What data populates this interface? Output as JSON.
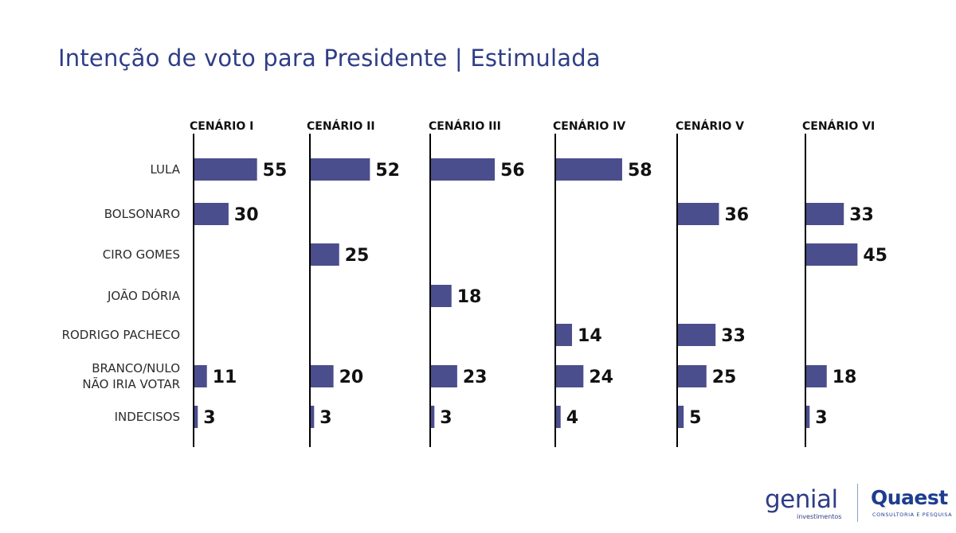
{
  "title": "Intenção de voto para Presidente | Estimulada",
  "colors": {
    "bar": "#4a4e8c",
    "title": "#2f3d87",
    "axis": "#000000"
  },
  "chart_data": {
    "type": "bar",
    "orientation": "horizontal",
    "categories": [
      "LULA",
      "BOLSONARO",
      "CIRO GOMES",
      "JOÃO DÓRIA",
      "RODRIGO PACHECO",
      "BRANCO/NULO\nNÃO IRIA VOTAR",
      "INDECISOS"
    ],
    "series": [
      {
        "name": "CENÁRIO I",
        "values": [
          55,
          30,
          null,
          null,
          null,
          11,
          3
        ]
      },
      {
        "name": "CENÁRIO II",
        "values": [
          52,
          null,
          25,
          null,
          null,
          20,
          3
        ]
      },
      {
        "name": "CENÁRIO III",
        "values": [
          56,
          null,
          null,
          18,
          null,
          23,
          3
        ]
      },
      {
        "name": "CENÁRIO IV",
        "values": [
          58,
          null,
          null,
          null,
          14,
          24,
          4
        ]
      },
      {
        "name": "CENÁRIO V",
        "values": [
          null,
          36,
          null,
          null,
          33,
          25,
          5
        ]
      },
      {
        "name": "CENÁRIO VI",
        "values": [
          null,
          33,
          45,
          null,
          null,
          18,
          3
        ]
      }
    ]
  },
  "logos": {
    "genial": {
      "name": "genial",
      "sub": "investimentos"
    },
    "quaest": {
      "name": "Quaest",
      "sub": "CONSULTORIA E PESQUISA"
    }
  }
}
